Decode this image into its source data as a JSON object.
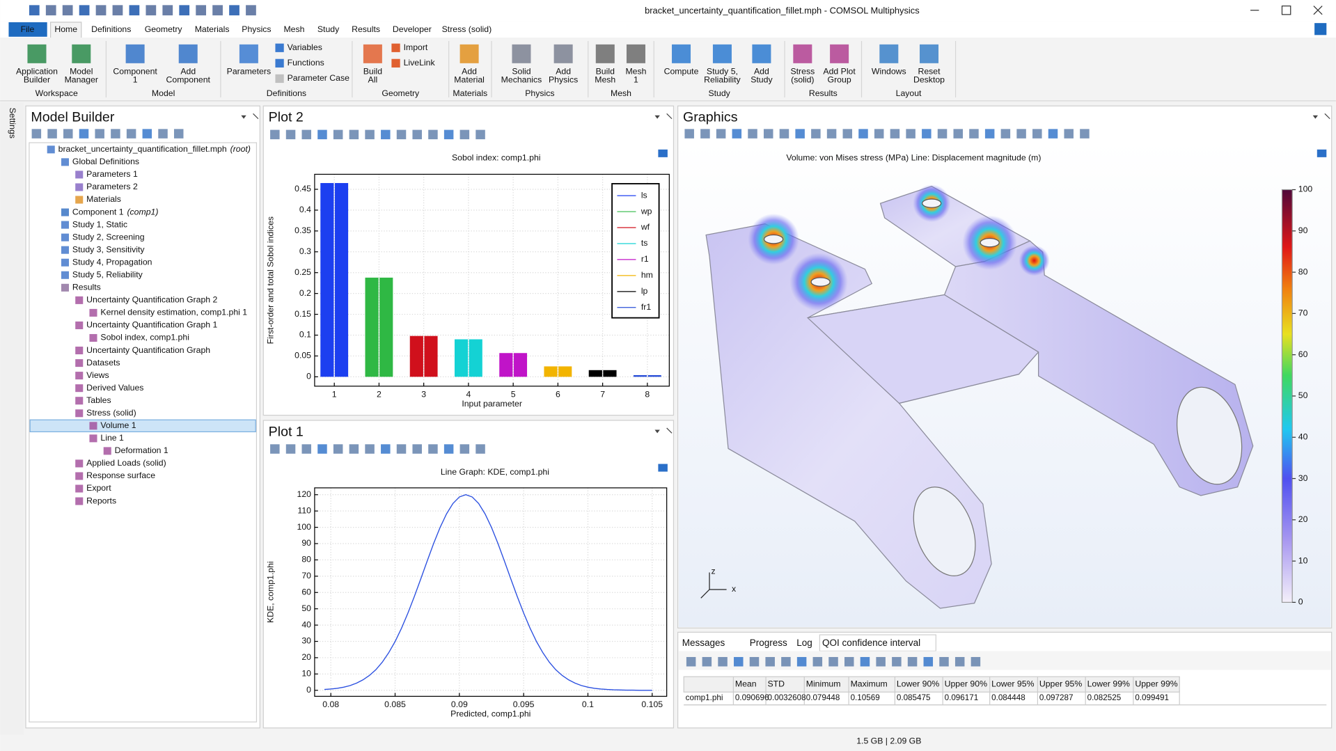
{
  "window": {
    "title": "bracket_uncertainty_quantification_fillet.mph - COMSOL Multiphysics"
  },
  "side_tab": "Settings",
  "menu": {
    "tabs": [
      "File",
      "Home",
      "Definitions",
      "Geometry",
      "Materials",
      "Physics",
      "Mesh",
      "Study",
      "Results",
      "Developer",
      "Stress (solid)"
    ],
    "active": 1
  },
  "ribbon": [
    {
      "label": "Workspace",
      "buttons": [
        {
          "text": [
            "Application",
            "Builder"
          ]
        },
        {
          "text": [
            "Model",
            "Manager"
          ]
        }
      ]
    },
    {
      "label": "Model",
      "buttons": [
        {
          "text": [
            "Component",
            "1"
          ]
        },
        {
          "text": [
            "Add",
            "Component"
          ]
        }
      ]
    },
    {
      "label": "Definitions",
      "buttons": [
        {
          "text": [
            "Parameters"
          ]
        },
        {
          "text": [
            "Variables"
          ],
          "small": true
        },
        {
          "text": [
            "Functions"
          ],
          "small": true
        },
        {
          "text": [
            "Parameter Case"
          ],
          "small": true,
          "disabled": true
        }
      ]
    },
    {
      "label": "Geometry",
      "buttons": [
        {
          "text": [
            "Build",
            "All"
          ]
        },
        {
          "text": [
            "Import"
          ],
          "small": true
        },
        {
          "text": [
            "LiveLink"
          ],
          "small": true
        }
      ]
    },
    {
      "label": "Materials",
      "buttons": [
        {
          "text": [
            "Add",
            "Material"
          ]
        }
      ]
    },
    {
      "label": "Physics",
      "buttons": [
        {
          "text": [
            "Solid",
            "Mechanics"
          ]
        },
        {
          "text": [
            "Add",
            "Physics"
          ]
        }
      ]
    },
    {
      "label": "Mesh",
      "buttons": [
        {
          "text": [
            "Build",
            "Mesh"
          ]
        },
        {
          "text": [
            "Mesh",
            "1"
          ]
        }
      ]
    },
    {
      "label": "Study",
      "buttons": [
        {
          "text": [
            "Compute"
          ]
        },
        {
          "text": [
            "Study 5,",
            "Reliability"
          ]
        },
        {
          "text": [
            "Add",
            "Study"
          ]
        }
      ]
    },
    {
      "label": "Results",
      "buttons": [
        {
          "text": [
            "Stress",
            "(solid)"
          ]
        },
        {
          "text": [
            "Add Plot",
            "Group"
          ]
        }
      ]
    },
    {
      "label": "Layout",
      "buttons": [
        {
          "text": [
            "Windows"
          ]
        },
        {
          "text": [
            "Reset",
            "Desktop"
          ]
        }
      ]
    }
  ],
  "model_builder": {
    "title": "Model Builder",
    "items": [
      {
        "label": "bracket_uncertainty_quantification_fillet.mph",
        "note": "(root)",
        "level": 0
      },
      {
        "label": "Global Definitions",
        "level": 1
      },
      {
        "label": "Parameters 1",
        "level": 2
      },
      {
        "label": "Parameters 2",
        "level": 2
      },
      {
        "label": "Materials",
        "level": 2
      },
      {
        "label": "Component 1",
        "note": "(comp1)",
        "level": 1
      },
      {
        "label": "Study 1, Static",
        "level": 1
      },
      {
        "label": "Study 2, Screening",
        "level": 1
      },
      {
        "label": "Study 3, Sensitivity",
        "level": 1
      },
      {
        "label": "Study 4, Propagation",
        "level": 1
      },
      {
        "label": "Study 5, Reliability",
        "level": 1
      },
      {
        "label": "Results",
        "level": 1
      },
      {
        "label": "Uncertainty Quantification Graph 2",
        "level": 2
      },
      {
        "label": "Kernel density estimation, comp1.phi 1",
        "level": 3
      },
      {
        "label": "Uncertainty Quantification Graph 1",
        "level": 2
      },
      {
        "label": "Sobol index, comp1.phi",
        "level": 3
      },
      {
        "label": "Uncertainty Quantification Graph",
        "level": 2
      },
      {
        "label": "Datasets",
        "level": 2
      },
      {
        "label": "Views",
        "level": 2
      },
      {
        "label": "Derived Values",
        "level": 2
      },
      {
        "label": "Tables",
        "level": 2
      },
      {
        "label": "Stress (solid)",
        "level": 2
      },
      {
        "label": "Volume 1",
        "level": 3,
        "selected": true
      },
      {
        "label": "Line 1",
        "level": 3
      },
      {
        "label": "Deformation 1",
        "level": 4
      },
      {
        "label": "Applied Loads (solid)",
        "level": 2
      },
      {
        "label": "Response surface",
        "level": 2
      },
      {
        "label": "Export",
        "level": 2
      },
      {
        "label": "Reports",
        "level": 2
      }
    ]
  },
  "plot_panels": [
    {
      "title": "Plot 2"
    },
    {
      "title": "Plot 1"
    }
  ],
  "chart_data": [
    {
      "type": "bar",
      "title": "Sobol index: comp1.phi",
      "xlabel": "Input parameter",
      "ylabel": "First-order and total Sobol indices",
      "series": [
        {
          "name": "ls",
          "color": "#1c3ff0",
          "x": 1,
          "values": [
            0.465,
            0.465
          ]
        },
        {
          "name": "wp",
          "color": "#2fb844",
          "x": 2,
          "values": [
            0.238,
            0.238
          ]
        },
        {
          "name": "wf",
          "color": "#d0101c",
          "x": 3,
          "values": [
            0.098,
            0.098
          ]
        },
        {
          "name": "ts",
          "color": "#14d2d4",
          "x": 4,
          "values": [
            0.09,
            0.09
          ]
        },
        {
          "name": "r1",
          "color": "#c014c8",
          "x": 5,
          "values": [
            0.057,
            0.057
          ]
        },
        {
          "name": "hm",
          "color": "#f2b400",
          "x": 6,
          "values": [
            0.025,
            0.025
          ]
        },
        {
          "name": "lp",
          "color": "#000000",
          "x": 7,
          "values": [
            0.016,
            0.016
          ]
        },
        {
          "name": "fr1",
          "color": "#2a4fd8",
          "x": 8,
          "values": [
            0.004,
            0.004
          ]
        }
      ],
      "xlim": [
        0.56,
        8.49
      ],
      "xticks": [
        1,
        2,
        3,
        4,
        5,
        6,
        7,
        8
      ],
      "ylim": [
        -0.0225,
        0.486
      ],
      "yticks": [
        0,
        0.05,
        0.1,
        0.15,
        0.2,
        0.25,
        0.3,
        0.35,
        0.4,
        0.45
      ],
      "grid": true,
      "legend": "upper right"
    },
    {
      "type": "line",
      "title": "Line Graph: KDE, comp1.phi",
      "xlabel": "Predicted, comp1.phi",
      "ylabel": "KDE, comp1.phi",
      "color": "#2a4fe0",
      "x": [
        0.0795,
        0.08,
        0.0805,
        0.081,
        0.0815,
        0.082,
        0.0825,
        0.083,
        0.0835,
        0.084,
        0.0845,
        0.085,
        0.0855,
        0.086,
        0.0865,
        0.087,
        0.0875,
        0.088,
        0.0885,
        0.089,
        0.0895,
        0.09,
        0.0905,
        0.091,
        0.0915,
        0.092,
        0.0925,
        0.093,
        0.0935,
        0.094,
        0.0945,
        0.095,
        0.0955,
        0.096,
        0.0965,
        0.097,
        0.0975,
        0.098,
        0.0985,
        0.099,
        0.0995,
        0.1,
        0.1005,
        0.101,
        0.1015,
        0.102,
        0.1025,
        0.103,
        0.1035,
        0.104,
        0.1045,
        0.105
      ],
      "values": [
        0.5,
        0.8,
        1.2,
        1.9,
        2.9,
        4.4,
        6.4,
        9.1,
        12.6,
        17.2,
        23.0,
        29.9,
        38.1,
        47.4,
        57.6,
        68.4,
        79.4,
        90.1,
        99.9,
        108.2,
        114.6,
        118.6,
        120,
        118.6,
        114.6,
        108.2,
        99.9,
        90.1,
        79.4,
        68.4,
        57.6,
        47.4,
        38.1,
        29.9,
        23.0,
        17.2,
        12.6,
        9.1,
        6.4,
        4.4,
        2.9,
        1.9,
        1.2,
        0.8,
        0.5,
        0.3,
        0.2,
        0.1,
        0.1,
        0,
        0,
        0
      ],
      "xlim": [
        0.07874,
        0.10613
      ],
      "xticks": [
        0.08,
        0.085,
        0.09,
        0.095,
        0.1,
        0.105
      ],
      "ylim": [
        -3.7,
        124.2
      ],
      "yticks": [
        0,
        10,
        20,
        30,
        40,
        50,
        60,
        70,
        80,
        90,
        100,
        110,
        120
      ],
      "grid": true
    }
  ],
  "graphics": {
    "title": "Graphics",
    "caption": "Volume: von Mises stress (MPa)  Line: Displacement magnitude (m)",
    "colorbar": {
      "clim": [
        0,
        100
      ],
      "ticks": [
        0,
        10,
        20,
        30,
        40,
        50,
        60,
        70,
        80,
        90,
        100
      ]
    },
    "axes": [
      "z",
      "x"
    ]
  },
  "messages": {
    "tabs": [
      "Messages",
      "Progress",
      "Log",
      "QOI confidence interval"
    ],
    "active": 3,
    "table": {
      "columns": [
        "Mean",
        "STD",
        "Minimum",
        "Maximum",
        "Lower 90%",
        "Upper 90%",
        "Lower 95%",
        "Upper 95%",
        "Lower 99%",
        "Upper 99%"
      ],
      "rows": [
        [
          "comp1.phi",
          0.090696,
          0.0032608,
          0.079448,
          0.10569,
          0.085475,
          0.096171,
          0.084448,
          0.097287,
          0.082525,
          0.099491
        ]
      ]
    }
  },
  "status": "1.5 GB | 2.09 GB"
}
